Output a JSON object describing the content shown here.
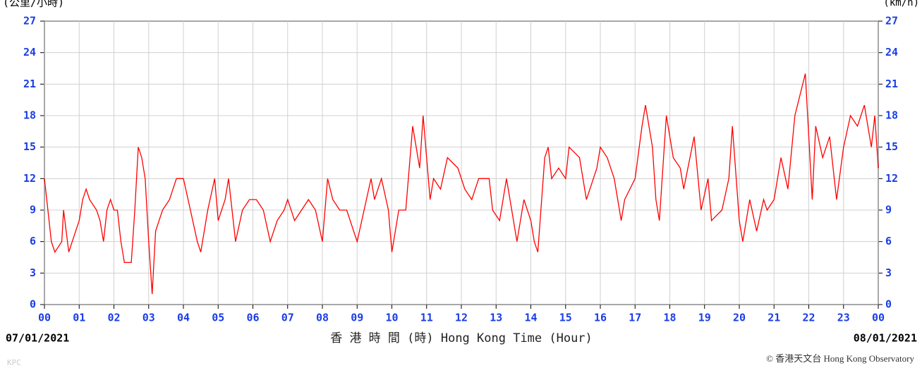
{
  "chart_data": {
    "type": "line",
    "y_label": "(公里/小時)",
    "y2_label": "(km/h)",
    "x_label": "香 港 時 間 (時)  Hong Kong Time (Hour)",
    "start_date": "07/01/2021",
    "end_date": "08/01/2021",
    "credit": "© 香港天文台 Hong Kong Observatory",
    "watermark": "KPC",
    "color": "#ff0000",
    "grid": true,
    "x": [
      0,
      0.1,
      0.2,
      0.3,
      0.5,
      0.55,
      0.7,
      0.8,
      0.9,
      1.0,
      1.1,
      1.2,
      1.3,
      1.5,
      1.6,
      1.7,
      1.8,
      1.9,
      2.0,
      2.1,
      2.2,
      2.3,
      2.5,
      2.6,
      2.7,
      2.8,
      2.9,
      3.0,
      3.1,
      3.2,
      3.4,
      3.6,
      3.8,
      4.0,
      4.2,
      4.4,
      4.5,
      4.7,
      4.9,
      5.0,
      5.1,
      5.2,
      5.3,
      5.5,
      5.7,
      5.9,
      6.1,
      6.3,
      6.5,
      6.7,
      6.9,
      7.0,
      7.2,
      7.4,
      7.6,
      7.8,
      8.0,
      8.15,
      8.3,
      8.5,
      8.7,
      8.9,
      9.0,
      9.2,
      9.4,
      9.5,
      9.6,
      9.7,
      9.9,
      10.0,
      10.2,
      10.4,
      10.6,
      10.8,
      10.9,
      11.1,
      11.2,
      11.4,
      11.6,
      11.9,
      12.1,
      12.3,
      12.5,
      12.8,
      12.9,
      13.1,
      13.3,
      13.5,
      13.6,
      13.8,
      14.0,
      14.1,
      14.2,
      14.4,
      14.5,
      14.6,
      14.8,
      15.0,
      15.1,
      15.4,
      15.6,
      15.9,
      16.0,
      16.2,
      16.4,
      16.6,
      16.7,
      17.0,
      17.2,
      17.3,
      17.5,
      17.6,
      17.7,
      17.9,
      18.1,
      18.3,
      18.4,
      18.7,
      18.9,
      19.1,
      19.2,
      19.5,
      19.7,
      19.8,
      20.0,
      20.1,
      20.3,
      20.5,
      20.7,
      20.8,
      21.0,
      21.2,
      21.4,
      21.6,
      21.9,
      22.1,
      22.2,
      22.4,
      22.6,
      22.8,
      23.0,
      23.2,
      23.4,
      23.6,
      23.8,
      23.9,
      24.0
    ],
    "values": [
      12,
      9,
      6,
      5,
      6,
      9,
      5,
      6,
      7,
      8,
      10,
      11,
      10,
      9,
      8,
      6,
      9,
      10,
      9,
      9,
      6,
      4,
      4,
      9,
      15,
      14,
      12,
      6,
      1,
      7,
      9,
      10,
      12,
      12,
      9,
      6,
      5,
      9,
      12,
      8,
      9,
      10,
      12,
      6,
      9,
      10,
      10,
      9,
      6,
      8,
      9,
      10,
      8,
      9,
      10,
      9,
      6,
      12,
      10,
      9,
      9,
      7,
      6,
      9,
      12,
      10,
      11,
      12,
      9,
      5,
      9,
      9,
      17,
      13,
      18,
      10,
      12,
      11,
      14,
      13,
      11,
      10,
      12,
      12,
      9,
      8,
      12,
      8,
      6,
      10,
      8,
      6,
      5,
      14,
      15,
      12,
      13,
      12,
      15,
      14,
      10,
      13,
      15,
      14,
      12,
      8,
      10,
      12,
      17,
      19,
      15,
      10,
      8,
      18,
      14,
      13,
      11,
      16,
      9,
      12,
      8,
      9,
      12,
      17,
      8,
      6,
      10,
      7,
      10,
      9,
      10,
      14,
      11,
      18,
      22,
      10,
      17,
      14,
      16,
      10,
      15,
      18,
      17,
      19,
      15,
      18,
      13
    ],
    "xlim": [
      0,
      24
    ],
    "ylim": [
      0,
      27
    ],
    "yticks": [
      {
        "value": 0,
        "label": "0"
      },
      3,
      6,
      9,
      12,
      15,
      18,
      21,
      24,
      27
    ],
    "xticks": [
      {
        "value": 0,
        "label": "00"
      },
      {
        "value": 1,
        "label": "01"
      },
      {
        "value": 2,
        "label": "02"
      },
      {
        "value": 3,
        "label": "03"
      },
      {
        "value": 4,
        "label": "04"
      },
      {
        "value": 5,
        "label": "05"
      },
      {
        "value": 6,
        "label": "06"
      },
      {
        "value": 7,
        "label": "07"
      },
      {
        "value": 8,
        "label": "08"
      },
      {
        "value": 9,
        "label": "09"
      },
      {
        "value": 10,
        "label": "10"
      },
      {
        "value": 11,
        "label": "11"
      },
      {
        "value": 12,
        "label": "12"
      },
      {
        "value": 13,
        "label": "13"
      },
      {
        "value": 14,
        "label": "14"
      },
      {
        "value": 15,
        "label": "15"
      },
      {
        "value": 16,
        "label": "16"
      },
      {
        "value": 17,
        "label": "17"
      },
      {
        "value": 18,
        "label": "18"
      },
      {
        "value": 19,
        "label": "19"
      },
      {
        "value": 20,
        "label": "20"
      },
      {
        "value": 21,
        "label": "21"
      },
      {
        "value": 22,
        "label": "22"
      },
      {
        "value": 23,
        "label": "23"
      },
      {
        "value": 24,
        "label": "00"
      }
    ]
  }
}
